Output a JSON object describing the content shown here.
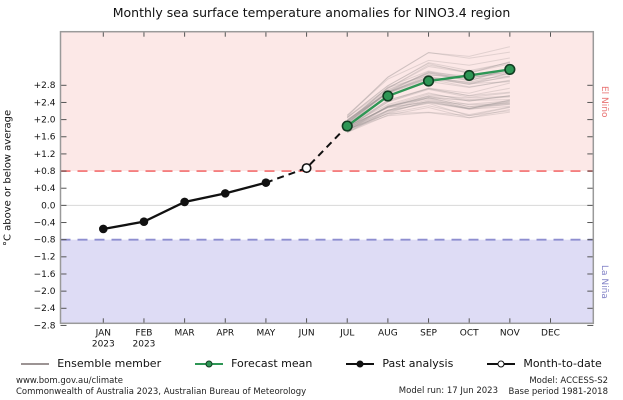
{
  "title": "Monthly sea surface temperature anomalies for NINO3.4 region",
  "ylabel": "°C above or below average",
  "side_labels": {
    "el_nino": "El Niño",
    "la_nina": "La Niña"
  },
  "legend": [
    {
      "key": "ensemble",
      "label": "Ensemble member"
    },
    {
      "key": "forecast",
      "label": "Forecast mean"
    },
    {
      "key": "past",
      "label": "Past analysis"
    },
    {
      "key": "mtd",
      "label": "Month-to-date"
    }
  ],
  "footer": {
    "site": "www.bom.gov.au/climate",
    "copyright": "Commonwealth of Australia 2023, Australian Bureau of Meteorology",
    "model_run": "Model run: 17 Jun 2023",
    "model": "Model: ACCESS-S2",
    "base_period": "Base period 1981-2018"
  },
  "colors": {
    "el_nino_band": "#fce8e7",
    "la_nina_band": "#dedcf5",
    "el_nino_line": "#f47f7f",
    "la_nina_line": "#8e8ed0",
    "zero_line": "#d8d8d8",
    "border": "#9a9a9a",
    "tick": "#555555",
    "tick_label": "#111111",
    "ensemble": "#9c9494",
    "forecast": "#2e9655",
    "forecast_edge": "#123d22",
    "past": "#111111",
    "mtd_fill": "#ffffff"
  },
  "chart_data": {
    "type": "line",
    "title": "Monthly sea surface temperature anomalies for NINO3.4 region",
    "xlabel": "",
    "ylabel": "°C above or below average",
    "x_categories": [
      "JAN",
      "FEB",
      "MAR",
      "APR",
      "MAY",
      "JUN",
      "JUL",
      "AUG",
      "SEP",
      "OCT",
      "NOV",
      "DEC"
    ],
    "x_sublabels": [
      "2023",
      "2023",
      "",
      "",
      "",
      "",
      "",
      "",
      "",
      "",
      "",
      ""
    ],
    "ylim": [
      -2.75,
      4.05
    ],
    "yticks": [
      2.8,
      2.4,
      2.0,
      1.6,
      1.2,
      0.8,
      0.4,
      0.0,
      -0.4,
      -0.8,
      -1.2,
      -1.6,
      -2.0,
      -2.4,
      -2.8
    ],
    "ytick_labels": [
      "+2.8",
      "+2.4",
      "+2.0",
      "+1.6",
      "+1.2",
      "+0.8",
      "+0.4",
      "0.0",
      "−0.4",
      "−0.8",
      "−1.2",
      "−1.6",
      "−2.0",
      "−2.4",
      "−2.8"
    ],
    "grid": "zero-line-only",
    "legend_position": "bottom",
    "thresholds": {
      "el_nino": 0.8,
      "la_nina": -0.8
    },
    "series": [
      {
        "name": "Past analysis",
        "style": "solid-black-filled-markers",
        "x": [
          "JAN",
          "FEB",
          "MAR",
          "APR",
          "MAY"
        ],
        "values": [
          -0.55,
          -0.38,
          0.08,
          0.28,
          0.53
        ]
      },
      {
        "name": "Month-to-date",
        "style": "dashed-black-open-marker",
        "x": [
          "JUN"
        ],
        "values": [
          0.87
        ]
      },
      {
        "name": "Forecast mean",
        "style": "solid-green-filled-markers",
        "x": [
          "JUL",
          "AUG",
          "SEP",
          "OCT",
          "NOV"
        ],
        "values": [
          1.85,
          2.55,
          2.9,
          3.03,
          3.17
        ]
      }
    ],
    "ensemble": {
      "name": "Ensemble member",
      "x": [
        "JUL",
        "AUG",
        "SEP",
        "OCT",
        "NOV"
      ],
      "count": 45,
      "low": [
        1.7,
        2.0,
        2.1,
        1.9,
        2.0
      ],
      "high": [
        2.1,
        3.05,
        3.6,
        3.5,
        3.7
      ]
    }
  }
}
